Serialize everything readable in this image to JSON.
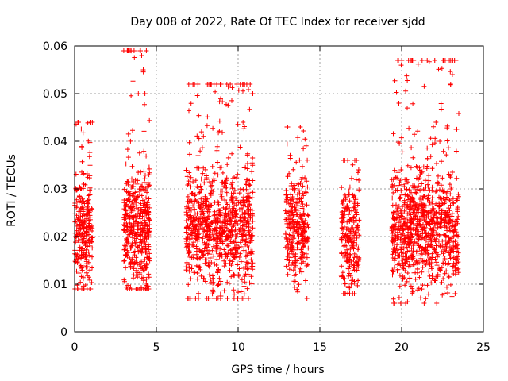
{
  "chart_data": {
    "type": "scatter",
    "title": "Day 008 of 2022, Rate Of TEC Index for receiver sjdd",
    "xlabel": "GPS time / hours",
    "ylabel": "ROTI / TECUs",
    "xlim": [
      0,
      25
    ],
    "ylim": [
      0,
      0.06
    ],
    "x_ticks": [
      "0",
      "5",
      "10",
      "15",
      "20",
      "25"
    ],
    "y_ticks": [
      "0",
      "0.01",
      "0.02",
      "0.03",
      "0.04",
      "0.05",
      "0.06"
    ],
    "grid": true,
    "marker": "+",
    "color": "#ff0000",
    "series": [
      {
        "name": "ROTI",
        "description": "clusters of dense + markers (approximate envelope per visible pass)",
        "clusters": [
          {
            "x_range": [
              0.0,
              1.1
            ],
            "y_center": 0.021,
            "y_spread": 0.006,
            "y_min": 0.009,
            "y_max": 0.044,
            "n": 260
          },
          {
            "x_range": [
              3.0,
              4.6
            ],
            "y_center": 0.021,
            "y_spread": 0.0065,
            "y_min": 0.009,
            "y_max": 0.059,
            "n": 420
          },
          {
            "x_range": [
              6.8,
              10.9
            ],
            "y_center": 0.021,
            "y_spread": 0.0065,
            "y_min": 0.007,
            "y_max": 0.052,
            "n": 900
          },
          {
            "x_range": [
              12.9,
              14.3
            ],
            "y_center": 0.021,
            "y_spread": 0.006,
            "y_min": 0.007,
            "y_max": 0.043,
            "n": 300
          },
          {
            "x_range": [
              16.3,
              17.4
            ],
            "y_center": 0.019,
            "y_spread": 0.0055,
            "y_min": 0.008,
            "y_max": 0.036,
            "n": 230
          },
          {
            "x_range": [
              19.4,
              23.5
            ],
            "y_center": 0.021,
            "y_spread": 0.0065,
            "y_min": 0.006,
            "y_max": 0.057,
            "n": 900
          }
        ],
        "peaks": [
          [
            4.0,
            0.059
          ],
          [
            4.1,
            0.058
          ],
          [
            10.4,
            0.052
          ],
          [
            10.9,
            0.05
          ],
          [
            23.0,
            0.057
          ],
          [
            23.1,
            0.054
          ],
          [
            23.0,
            0.052
          ],
          [
            4.2,
            0.055
          ],
          [
            22.1,
            0.044
          ],
          [
            10.3,
            0.044
          ],
          [
            0.2,
            0.044
          ],
          [
            4.3,
            0.05
          ],
          [
            3.9,
            0.05
          ]
        ]
      }
    ]
  }
}
